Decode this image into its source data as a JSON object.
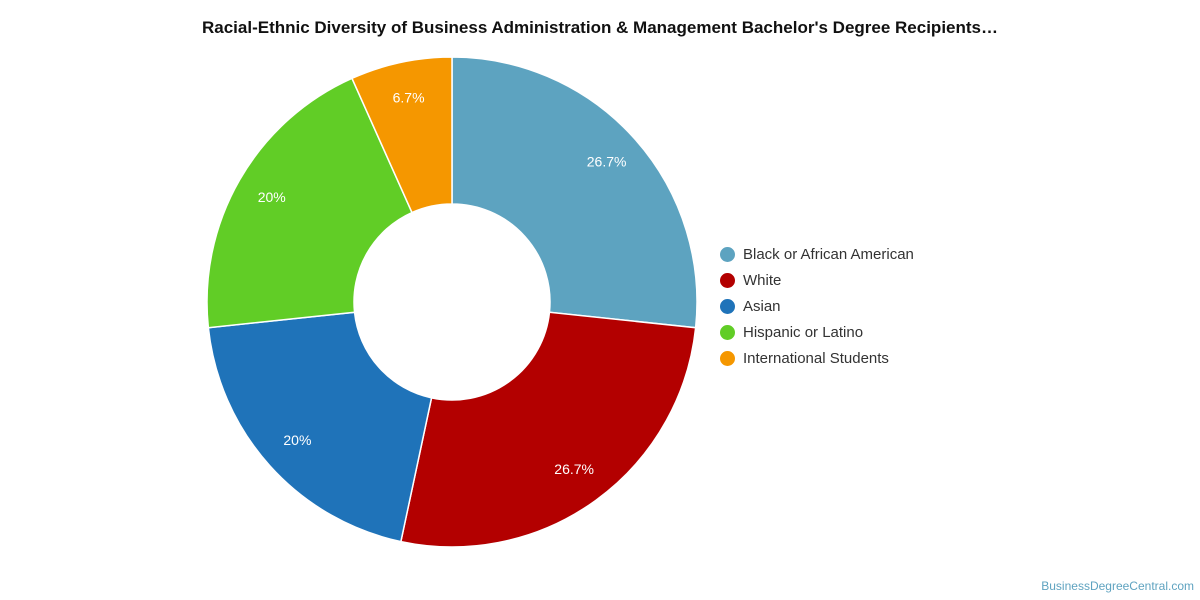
{
  "chart_data": {
    "type": "pie",
    "title": "Racial-Ethnic Diversity of Business Administration & Management Bachelor's Degree Recipients…",
    "categories": [
      "Black or African American",
      "White",
      "Asian",
      "Hispanic or Latino",
      "International Students"
    ],
    "values": [
      26.7,
      26.7,
      20,
      20,
      6.7
    ],
    "data_labels": [
      "26.7%",
      "26.7%",
      "20%",
      "20%",
      "6.7%"
    ],
    "colors": [
      "#5da3c0",
      "#b30000",
      "#1f73b9",
      "#61cd26",
      "#f59700"
    ],
    "donut": true,
    "legend": "right"
  },
  "credit": "BusinessDegreeCentral.com"
}
